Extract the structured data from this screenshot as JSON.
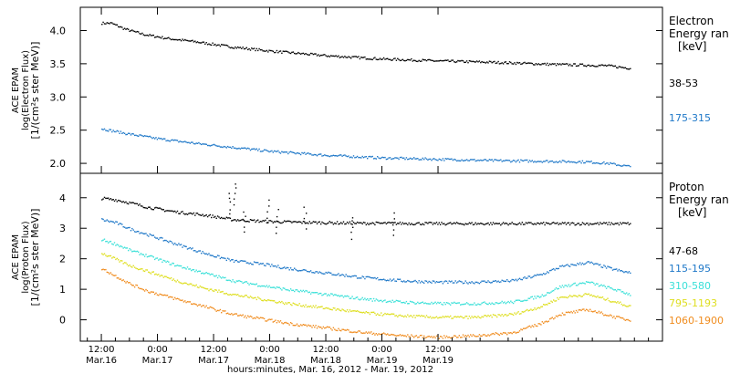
{
  "chart_data": [
    {
      "type": "scatter",
      "panel": "electron",
      "ylabel_lines": [
        "ACE EPAM",
        "log(Electron Flux)",
        "[1/(cm²s ster MeV)]"
      ],
      "ylim": [
        1.85,
        4.35
      ],
      "yticks": [
        2.0,
        2.5,
        3.0,
        3.5,
        4.0
      ],
      "ytick_labels": [
        "2.0",
        "2.5",
        "3.0",
        "3.5",
        "4.0"
      ],
      "legend_title": [
        "Electron",
        "Energy ran"
      ],
      "legend_unit": "[keV]",
      "series": [
        {
          "name": "38-53",
          "color": "#000000",
          "x_hours": [
            0,
            2,
            5,
            9,
            14,
            20,
            28,
            36,
            48,
            60,
            72,
            84,
            96,
            108,
            113
          ],
          "y": [
            4.12,
            4.12,
            4.03,
            3.95,
            3.89,
            3.84,
            3.76,
            3.7,
            3.63,
            3.58,
            3.55,
            3.53,
            3.5,
            3.48,
            3.44
          ]
        },
        {
          "name": "175-315",
          "color": "#1f78c8",
          "x_hours": [
            0,
            5,
            12,
            20,
            28,
            36,
            48,
            60,
            72,
            84,
            96,
            104,
            108,
            113
          ],
          "y": [
            2.53,
            2.46,
            2.38,
            2.31,
            2.25,
            2.19,
            2.13,
            2.09,
            2.07,
            2.05,
            2.04,
            2.03,
            2.01,
            1.96
          ]
        }
      ]
    },
    {
      "type": "scatter",
      "panel": "proton",
      "ylabel_lines": [
        "ACE EPAM",
        "log(Proton Flux)",
        "[1/(cm²s ster MeV)]"
      ],
      "ylim": [
        -0.7,
        4.8
      ],
      "yticks": [
        0,
        1,
        2,
        3,
        4
      ],
      "ytick_labels": [
        "0",
        "1",
        "2",
        "3",
        "4"
      ],
      "legend_title": [
        "Proton",
        "Energy ran"
      ],
      "legend_unit": "[keV]",
      "series": [
        {
          "name": "47-68",
          "color": "#000000",
          "x_hours": [
            0,
            3,
            6,
            10,
            16,
            22,
            28,
            34,
            40,
            48,
            56,
            64,
            72,
            84,
            96,
            104,
            113
          ],
          "y": [
            4.0,
            3.95,
            3.85,
            3.7,
            3.55,
            3.45,
            3.3,
            3.25,
            3.22,
            3.2,
            3.18,
            3.18,
            3.17,
            3.17,
            3.17,
            3.17,
            3.17
          ]
        },
        {
          "name": "115-195",
          "color": "#1f78c8",
          "x_hours": [
            0,
            3,
            6,
            10,
            16,
            22,
            28,
            34,
            40,
            48,
            56,
            64,
            72,
            80,
            88,
            94,
            98,
            104,
            110,
            113
          ],
          "y": [
            3.3,
            3.2,
            3.0,
            2.8,
            2.5,
            2.2,
            1.95,
            1.85,
            1.7,
            1.55,
            1.4,
            1.3,
            1.25,
            1.25,
            1.3,
            1.5,
            1.75,
            1.9,
            1.65,
            1.55
          ]
        },
        {
          "name": "310-580",
          "color": "#3ae0d8",
          "x_hours": [
            0,
            3,
            6,
            10,
            16,
            22,
            28,
            34,
            40,
            48,
            56,
            64,
            72,
            80,
            88,
            94,
            98,
            104,
            110,
            113
          ],
          "y": [
            2.65,
            2.5,
            2.3,
            2.1,
            1.8,
            1.55,
            1.3,
            1.15,
            1.0,
            0.85,
            0.7,
            0.6,
            0.55,
            0.55,
            0.6,
            0.8,
            1.1,
            1.25,
            1.0,
            0.85
          ]
        },
        {
          "name": "795-1193",
          "color": "#dede1e",
          "x_hours": [
            0,
            3,
            6,
            10,
            16,
            22,
            28,
            34,
            40,
            48,
            56,
            64,
            72,
            80,
            88,
            94,
            98,
            104,
            110,
            113
          ],
          "y": [
            2.2,
            2.0,
            1.8,
            1.6,
            1.3,
            1.05,
            0.85,
            0.7,
            0.55,
            0.4,
            0.25,
            0.15,
            0.1,
            0.1,
            0.2,
            0.45,
            0.75,
            0.85,
            0.6,
            0.45
          ]
        },
        {
          "name": "1060-1900",
          "color": "#f08c1e",
          "x_hours": [
            0,
            3,
            6,
            10,
            16,
            22,
            28,
            34,
            40,
            48,
            56,
            64,
            72,
            80,
            88,
            94,
            98,
            104,
            110,
            113
          ],
          "y": [
            1.7,
            1.45,
            1.2,
            0.95,
            0.7,
            0.45,
            0.2,
            0.05,
            -0.1,
            -0.25,
            -0.4,
            -0.5,
            -0.55,
            -0.5,
            -0.4,
            -0.1,
            0.2,
            0.35,
            0.1,
            0.0
          ]
        }
      ],
      "spikes": [
        {
          "x_hours": 27.5,
          "y": 4.2
        },
        {
          "x_hours": 28.5,
          "y": 4.5
        },
        {
          "x_hours": 30.5,
          "y": 3.6
        },
        {
          "x_hours": 35.5,
          "y": 3.9
        },
        {
          "x_hours": 37.5,
          "y": 3.6
        },
        {
          "x_hours": 43.5,
          "y": 3.7
        },
        {
          "x_hours": 53.5,
          "y": 3.4
        },
        {
          "x_hours": 62.5,
          "y": 3.5
        }
      ]
    }
  ],
  "xaxis": {
    "xlim_hours": [
      -4.5,
      120
    ],
    "ticks": [
      {
        "hours": 0,
        "line1": "12:00",
        "line2": "Mar.16"
      },
      {
        "hours": 12,
        "line1": "0:00",
        "line2": "Mar.17"
      },
      {
        "hours": 24,
        "line1": "12:00",
        "line2": "Mar.17"
      },
      {
        "hours": 36,
        "line1": "0:00",
        "line2": "Mar.18"
      },
      {
        "hours": 48,
        "line1": "12:00",
        "line2": "Mar.18"
      },
      {
        "hours": 60,
        "line1": "0:00",
        "line2": "Mar.19"
      },
      {
        "hours": 72,
        "line1": "12:00",
        "line2": "Mar.19"
      }
    ],
    "label": "hours:minutes, Mar. 16, 2012 - Mar. 19, 2012"
  }
}
